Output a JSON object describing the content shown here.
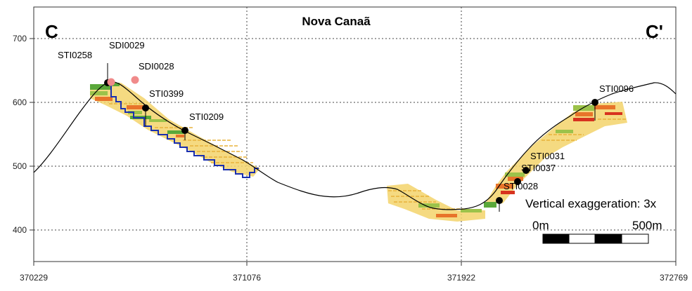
{
  "title": "Nova Canaã",
  "section_start": "C",
  "section_end": "C'",
  "vertical_exaggeration": "Vertical exaggeration: 3x",
  "scale_bar": {
    "left_label": "0m",
    "right_label": "500m"
  },
  "x_axis": {
    "ticks": [
      "370229",
      "371076",
      "371922",
      "372769"
    ]
  },
  "y_axis": {
    "ticks": [
      "400",
      "500",
      "600",
      "700"
    ]
  },
  "drillholes": {
    "STI0258": "STI0258",
    "SDI0029": "SDI0029",
    "SDI0028": "SDI0028",
    "STI0399": "STI0399",
    "STI0209": "STI0209",
    "STI0096": "STI0096",
    "STI0031": "STI0031",
    "STI0037": "STI0037",
    "STI0028": "STI0028"
  },
  "colors": {
    "topography": "#000000",
    "pit_outline": "#1a2fb0",
    "collar": "#000000",
    "planned_collar": "#f08a8a",
    "grade_low": "#f3d36b",
    "grade_mid": "#9cc24a",
    "grade_high": "#e8742a",
    "grade_top": "#d7331f",
    "grade_green": "#5aa83a",
    "grid": "#444444"
  }
}
